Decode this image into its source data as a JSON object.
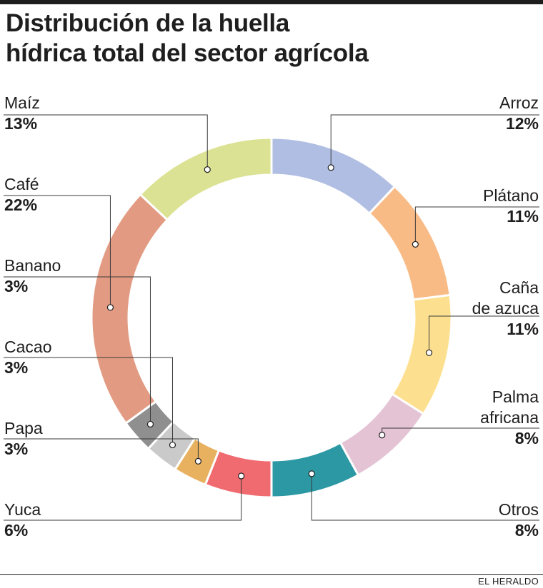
{
  "title_lines": [
    "Distribución de la huella",
    "hídrica total del sector agrícola"
  ],
  "source": "EL HERALDO",
  "chart_data": {
    "type": "pie",
    "variant": "donut",
    "title": "Distribución de la huella hídrica total del sector agrícola",
    "unit": "%",
    "slices": [
      {
        "id": "arroz",
        "name_lines": [
          "Arroz"
        ],
        "label": "12%",
        "value": 12,
        "color": "#b0bee3",
        "side": "right"
      },
      {
        "id": "platano",
        "name_lines": [
          "Plátano"
        ],
        "label": "11%",
        "value": 11,
        "color": "#f9bb86",
        "side": "right"
      },
      {
        "id": "cana",
        "name_lines": [
          "Caña",
          "de azuca"
        ],
        "label": "11%",
        "value": 11,
        "color": "#fde08f",
        "side": "right"
      },
      {
        "id": "palma",
        "name_lines": [
          "Palma",
          "africana"
        ],
        "label": "8%",
        "value": 8,
        "color": "#e4c3d5",
        "side": "right"
      },
      {
        "id": "otros",
        "name_lines": [
          "Otros"
        ],
        "label": "8%",
        "value": 8,
        "color": "#2b98a4",
        "side": "right"
      },
      {
        "id": "yuca",
        "name_lines": [
          "Yuca"
        ],
        "label": "6%",
        "value": 6,
        "color": "#f06b70",
        "side": "left"
      },
      {
        "id": "papa",
        "name_lines": [
          "Papa"
        ],
        "label": "3%",
        "value": 3,
        "color": "#e7b15f",
        "side": "left"
      },
      {
        "id": "cacao",
        "name_lines": [
          "Cacao"
        ],
        "label": "3%",
        "value": 3,
        "color": "#cacaca",
        "side": "left"
      },
      {
        "id": "banano",
        "name_lines": [
          "Banano"
        ],
        "label": "3%",
        "value": 3,
        "color": "#8f8f8f",
        "side": "left"
      },
      {
        "id": "cafe",
        "name_lines": [
          "Café"
        ],
        "label": "22%",
        "value": 22,
        "color": "#e29b82",
        "side": "left"
      },
      {
        "id": "maiz",
        "name_lines": [
          "Maíz"
        ],
        "label": "13%",
        "value": 13,
        "color": "#dce293",
        "side": "left"
      }
    ]
  }
}
